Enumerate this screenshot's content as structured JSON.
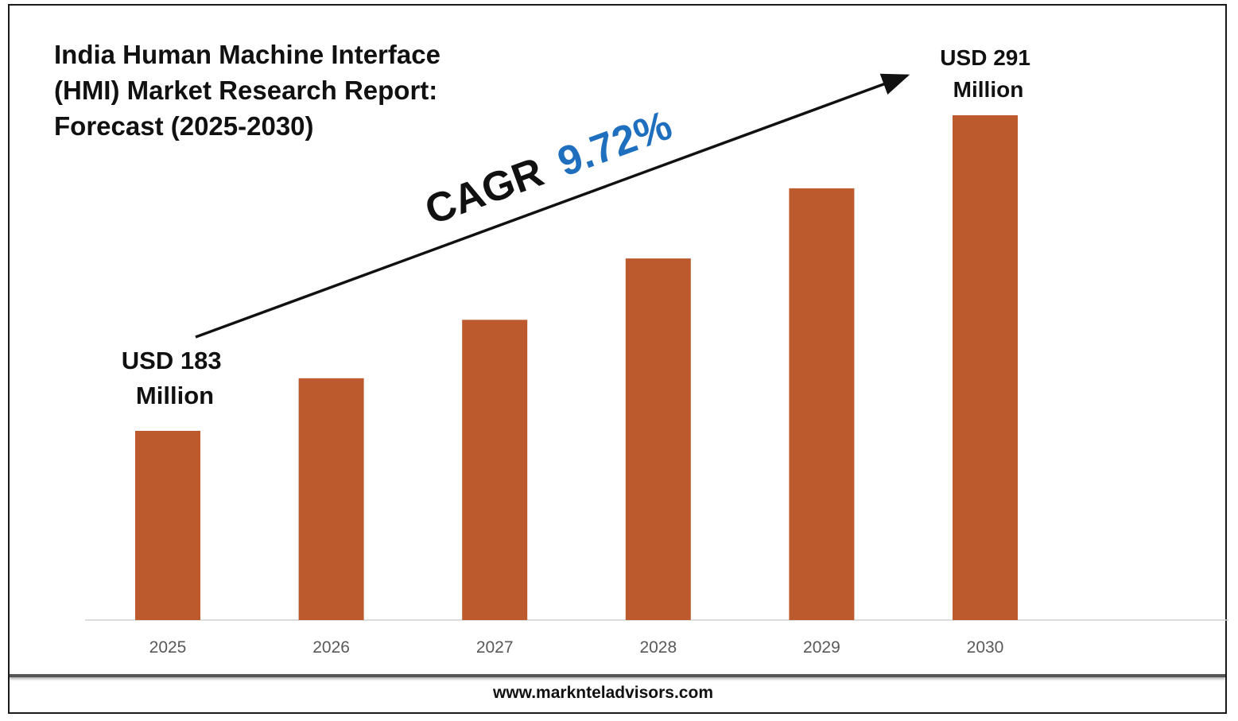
{
  "page": {
    "title_lines": [
      "India Human Machine Interface",
      "(HMI) Market Research Report:",
      "Forecast (2025-2030)"
    ],
    "footer": "www.marknteladvisors.com"
  },
  "annotations": {
    "cagr_label": "CAGR",
    "cagr_value": "9.72%",
    "start_value_lines": [
      "USD 183",
      "Million"
    ],
    "end_value_lines": [
      "USD 291",
      "Million"
    ]
  },
  "colors": {
    "bar": "#bc5a2e",
    "cagr_value": "#1f6fbf",
    "text": "#111111",
    "tick": "#595959",
    "axis": "#d0d0d0"
  },
  "chart_data": {
    "type": "bar",
    "title": "India Human Machine Interface (HMI) Market Research Report: Forecast (2025-2030)",
    "categories": [
      "2025",
      "2026",
      "2027",
      "2028",
      "2029",
      "2030"
    ],
    "series": [
      {
        "values": [
          183,
          201,
          221,
          242,
          266,
          291
        ]
      }
    ],
    "unit": "USD Million",
    "ylim": [
      0,
      300
    ],
    "grid": false,
    "legend": "none",
    "cagr": "9.72%"
  }
}
